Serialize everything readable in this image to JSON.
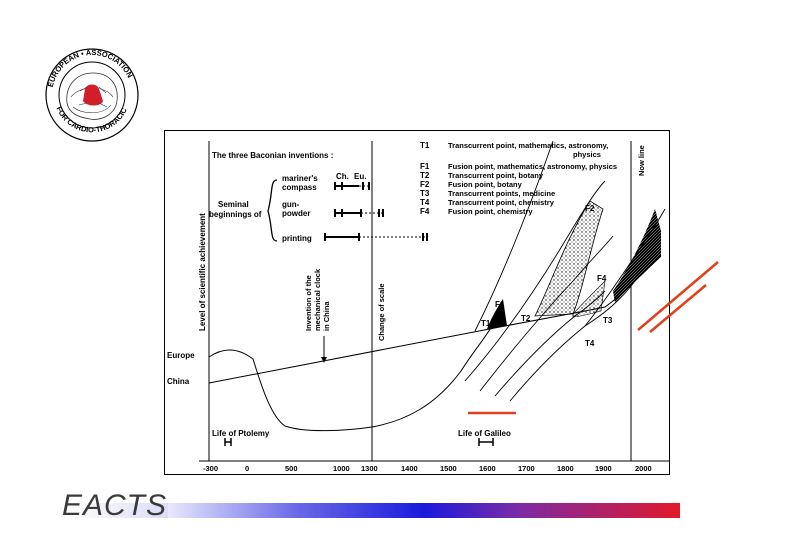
{
  "logo": {
    "text_top": "EUROPEAN • ASSOCIATION",
    "text_bottom": "FOR CARDIO-THORACIC"
  },
  "brand": {
    "name": "EACTS"
  },
  "diagram": {
    "inventions_title": "The three Baconian inventions :",
    "col_ch": "Ch.",
    "col_eu": "Eu.",
    "seminal_1": "Seminal",
    "seminal_2": "beginnings of",
    "inv_compass_1": "mariner's",
    "inv_compass_2": "compass",
    "inv_gun_1": "gun-",
    "inv_gun_2": "powder",
    "inv_print": "printing",
    "y_axis_label": "Level of scientific achievement",
    "clock_label": [
      "Invention of the",
      "mechanical clock",
      "in China"
    ],
    "change_of_scale": "Change of scale",
    "now_line": "Now line",
    "legend": [
      {
        "code": "T1",
        "text": "Transcurrent point, mathematics, astronomy,",
        "text2": "physics"
      },
      {
        "code": "F1",
        "text": "Fusion point, mathematics, astronomy, physics"
      },
      {
        "code": "T2",
        "text": "Transcurrent point, botany"
      },
      {
        "code": "F2",
        "text": "Fusion point, botany"
      },
      {
        "code": "T3",
        "text": "Transcurrent points, medicine"
      },
      {
        "code": "T4",
        "text": "Transcurrent point, chemistry"
      },
      {
        "code": "F4",
        "text": "Fusion point, chemistry"
      }
    ],
    "point_labels": {
      "F1": "F1",
      "T1": "T1",
      "T2": "T2",
      "T3": "T3",
      "T4": "T4",
      "F2": "F2",
      "F4": "F4"
    },
    "europe": "Europe",
    "china": "China",
    "ptolemy": "Life of Ptolemy",
    "galileo": "Life of Galileo",
    "x_ticks": [
      "-300",
      "0",
      "500",
      "1000",
      "1300",
      "1400",
      "1500",
      "1600",
      "1700",
      "1800",
      "1900",
      "2000"
    ]
  }
}
